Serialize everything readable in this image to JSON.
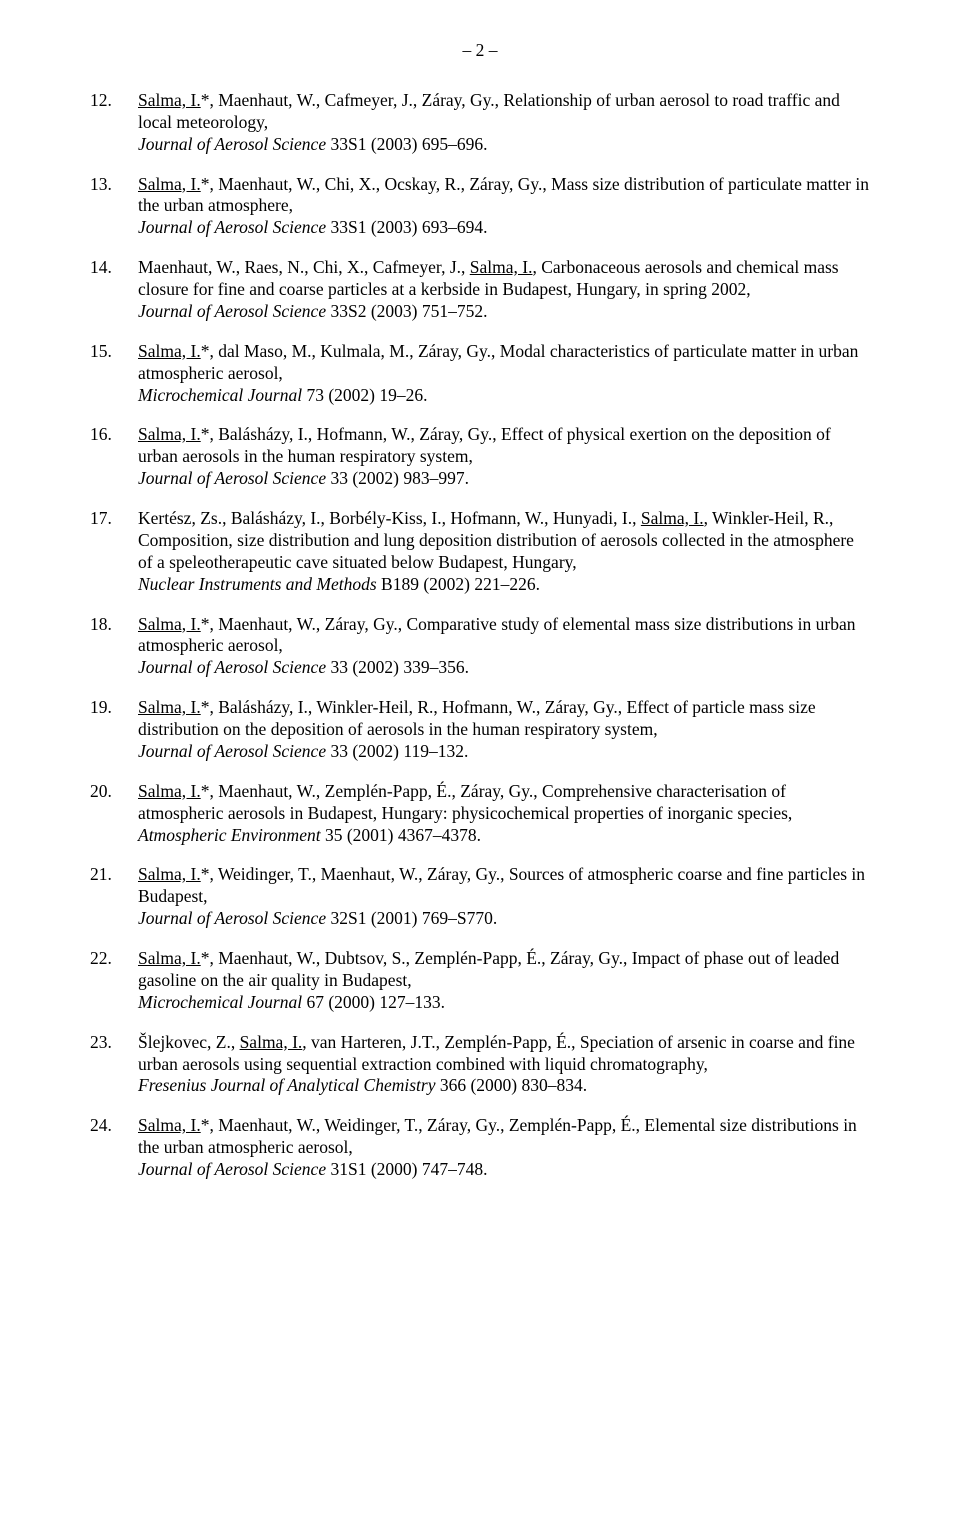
{
  "page_number": "– 2 –",
  "entries": [
    {
      "num": "12.",
      "segments": [
        {
          "t": "Salma, I.",
          "u": true
        },
        {
          "t": "*, Maenhaut, W., Cafmeyer, J., Záray, Gy., Relationship of urban aerosol to road traffic and local meteorology,"
        }
      ],
      "journal": "Journal of Aerosol Science",
      "tail": " 33S1 (2003) 695–696."
    },
    {
      "num": "13.",
      "segments": [
        {
          "t": "Salma, I.",
          "u": true
        },
        {
          "t": "*, Maenhaut, W., Chi, X., Ocskay, R., Záray, Gy., Mass size distribution of particulate matter in the urban atmosphere,"
        }
      ],
      "journal": "Journal of Aerosol Science",
      "tail": " 33S1 (2003) 693–694."
    },
    {
      "num": "14.",
      "segments": [
        {
          "t": "Maenhaut, W., Raes, N., Chi, X., Cafmeyer, J., "
        },
        {
          "t": "Salma, I.",
          "u": true
        },
        {
          "t": ", Carbonaceous aerosols and chemical mass closure for fine and coarse particles at a kerbside in Budapest, Hungary, in spring 2002,"
        }
      ],
      "journal": "Journal of Aerosol Science",
      "tail": " 33S2 (2003) 751–752."
    },
    {
      "num": "15.",
      "segments": [
        {
          "t": "Salma, I.",
          "u": true
        },
        {
          "t": "*, dal Maso, M., Kulmala, M., Záray, Gy., Modal characteristics of particulate matter in urban atmospheric aerosol,"
        }
      ],
      "journal": "Microchemical Journal",
      "tail": " 73 (2002) 19–26."
    },
    {
      "num": "16.",
      "segments": [
        {
          "t": "Salma, I.",
          "u": true
        },
        {
          "t": "*, Balásházy, I., Hofmann, W., Záray, Gy., Effect of physical exertion on the deposition of urban aerosols in the human respiratory system,"
        }
      ],
      "journal": "Journal of Aerosol Science",
      "tail": " 33 (2002) 983–997."
    },
    {
      "num": "17.",
      "segments": [
        {
          "t": "Kertész, Zs., Balásházy, I., Borbély-Kiss, I., Hofmann, W., Hunyadi, I., "
        },
        {
          "t": "Salma, I.",
          "u": true
        },
        {
          "t": ", Winkler-Heil, R., Composition, size distribution and lung deposition distribution of aerosols collected in the atmosphere of a speleotherapeutic cave situated below Budapest, Hungary,"
        }
      ],
      "journal": "Nuclear Instruments and Methods",
      "tail": " B189 (2002) 221–226."
    },
    {
      "num": "18.",
      "segments": [
        {
          "t": "Salma, I.",
          "u": true
        },
        {
          "t": "*, Maenhaut, W., Záray, Gy., Comparative study of elemental mass size distributions in urban atmospheric aerosol,"
        }
      ],
      "journal": "Journal of Aerosol Science",
      "tail": " 33 (2002) 339–356."
    },
    {
      "num": "19.",
      "segments": [
        {
          "t": "Salma, I.",
          "u": true
        },
        {
          "t": "*, Balásházy, I., Winkler-Heil, R., Hofmann, W., Záray, Gy., Effect of particle mass size distribution on the deposition of aerosols in the human respiratory system,"
        }
      ],
      "journal": "Journal of Aerosol Science",
      "tail": " 33 (2002) 119–132."
    },
    {
      "num": "20.",
      "segments": [
        {
          "t": "Salma, I.",
          "u": true
        },
        {
          "t": "*, Maenhaut, W., Zemplén-Papp, É., Záray, Gy., Comprehensive characterisation of atmospheric aerosols in Budapest, Hungary: physicochemical properties of inorganic species,"
        }
      ],
      "journal": "Atmospheric Environment",
      "tail": " 35 (2001) 4367–4378."
    },
    {
      "num": "21.",
      "segments": [
        {
          "t": "Salma, I.",
          "u": true
        },
        {
          "t": "*, Weidinger, T., Maenhaut, W., Záray, Gy., Sources of atmospheric coarse and fine particles in Budapest,"
        }
      ],
      "journal": "Journal of Aerosol Science",
      "tail": " 32S1 (2001) 769–S770."
    },
    {
      "num": "22.",
      "segments": [
        {
          "t": "Salma, I.",
          "u": true
        },
        {
          "t": "*, Maenhaut, W., Dubtsov, S., Zemplén-Papp, É., Záray, Gy., Impact of phase out of leaded gasoline on the air quality in Budapest,"
        }
      ],
      "journal": "Microchemical Journal",
      "tail": " 67 (2000) 127–133."
    },
    {
      "num": "23.",
      "segments": [
        {
          "t": "Šlejkovec, Z., "
        },
        {
          "t": "Salma, I.",
          "u": true
        },
        {
          "t": ", van Harteren, J.T., Zemplén-Papp, É., Speciation of arsenic in coarse and fine urban aerosols using sequential extraction combined with liquid chromatography,"
        }
      ],
      "journal": "Fresenius Journal of Analytical Chemistry",
      "tail": " 366 (2000) 830–834."
    },
    {
      "num": "24.",
      "segments": [
        {
          "t": "Salma, I.",
          "u": true
        },
        {
          "t": "*, Maenhaut, W., Weidinger, T., Záray, Gy., Zemplén-Papp, É., Elemental size distributions in the urban atmospheric aerosol,"
        }
      ],
      "journal": "Journal of Aerosol Science",
      "tail": " 31S1 (2000) 747–748."
    }
  ]
}
